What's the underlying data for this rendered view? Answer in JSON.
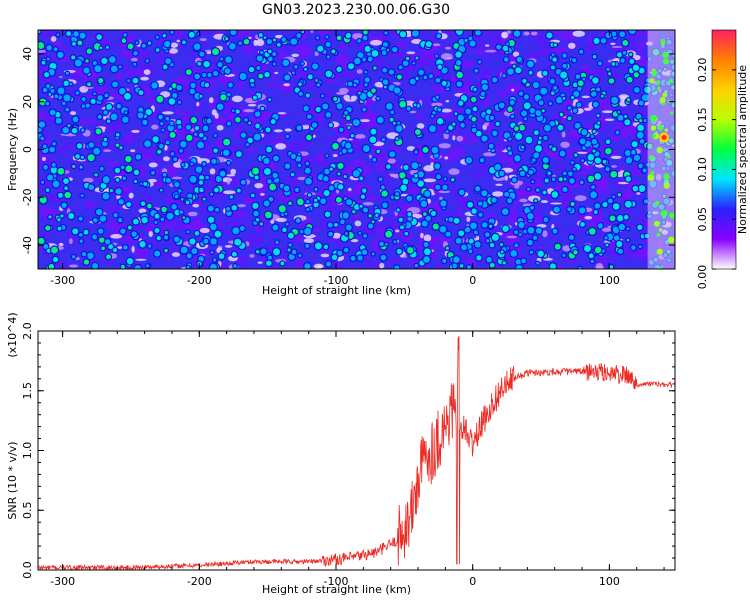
{
  "title": "GN03.2023.230.00.06.G30",
  "chart_data": [
    {
      "type": "heatmap",
      "xlabel": "Height of straight line (km)",
      "ylabel": "Frequency (Hz)",
      "xlim": [
        -318,
        148
      ],
      "ylim": [
        -50,
        50
      ],
      "xticks": [
        -300,
        -200,
        -100,
        0,
        100
      ],
      "yticks": [
        -40,
        -20,
        0,
        20,
        40
      ],
      "colorbar": {
        "label": "Normalized spectral amplitude",
        "range": [
          0,
          0.24
        ],
        "ticks": [
          "0.00",
          "0.05",
          "0.10",
          "0.15",
          "0.20"
        ],
        "colormap": [
          "#ffffff",
          "#8a00ff",
          "#2a20ff",
          "#00e5ff",
          "#00ff40",
          "#b8ff00",
          "#ffd000",
          "#ff8000",
          "#ff2060"
        ]
      },
      "description_values": {
        "typical_amplitude": 0.04,
        "peak_amplitude": 0.23,
        "peak_location": [
          140,
          5
        ]
      },
      "grid": false
    },
    {
      "type": "line",
      "xlabel": "Height of straight line (km)",
      "ylabel": "SNR (10 * v/v)",
      "y_multiplier": "(x10^4)",
      "xlim": [
        -318,
        148
      ],
      "ylim": [
        0,
        2.0
      ],
      "xticks": [
        -300,
        -200,
        -100,
        0,
        100
      ],
      "yticks": [
        "0.0",
        "0.5",
        "1.0",
        "1.5",
        "2.0"
      ],
      "series": [
        {
          "color": "#ee2a24",
          "x": [
            -318,
            -250,
            -200,
            -160,
            -120,
            -90,
            -70,
            -55,
            -45,
            -40,
            -35,
            -30,
            -25,
            -20,
            -15,
            -10,
            -5,
            0,
            10,
            20,
            30,
            40,
            60,
            80,
            100,
            115,
            120,
            130,
            140,
            148
          ],
          "y": [
            0.02,
            0.02,
            0.04,
            0.07,
            0.07,
            0.1,
            0.15,
            0.25,
            0.45,
            0.75,
            0.95,
            1.0,
            1.1,
            1.2,
            1.35,
            1.25,
            1.15,
            1.05,
            1.3,
            1.5,
            1.6,
            1.65,
            1.66,
            1.66,
            1.65,
            1.62,
            1.55,
            1.56,
            1.55,
            1.55
          ]
        }
      ],
      "grid": false
    }
  ]
}
